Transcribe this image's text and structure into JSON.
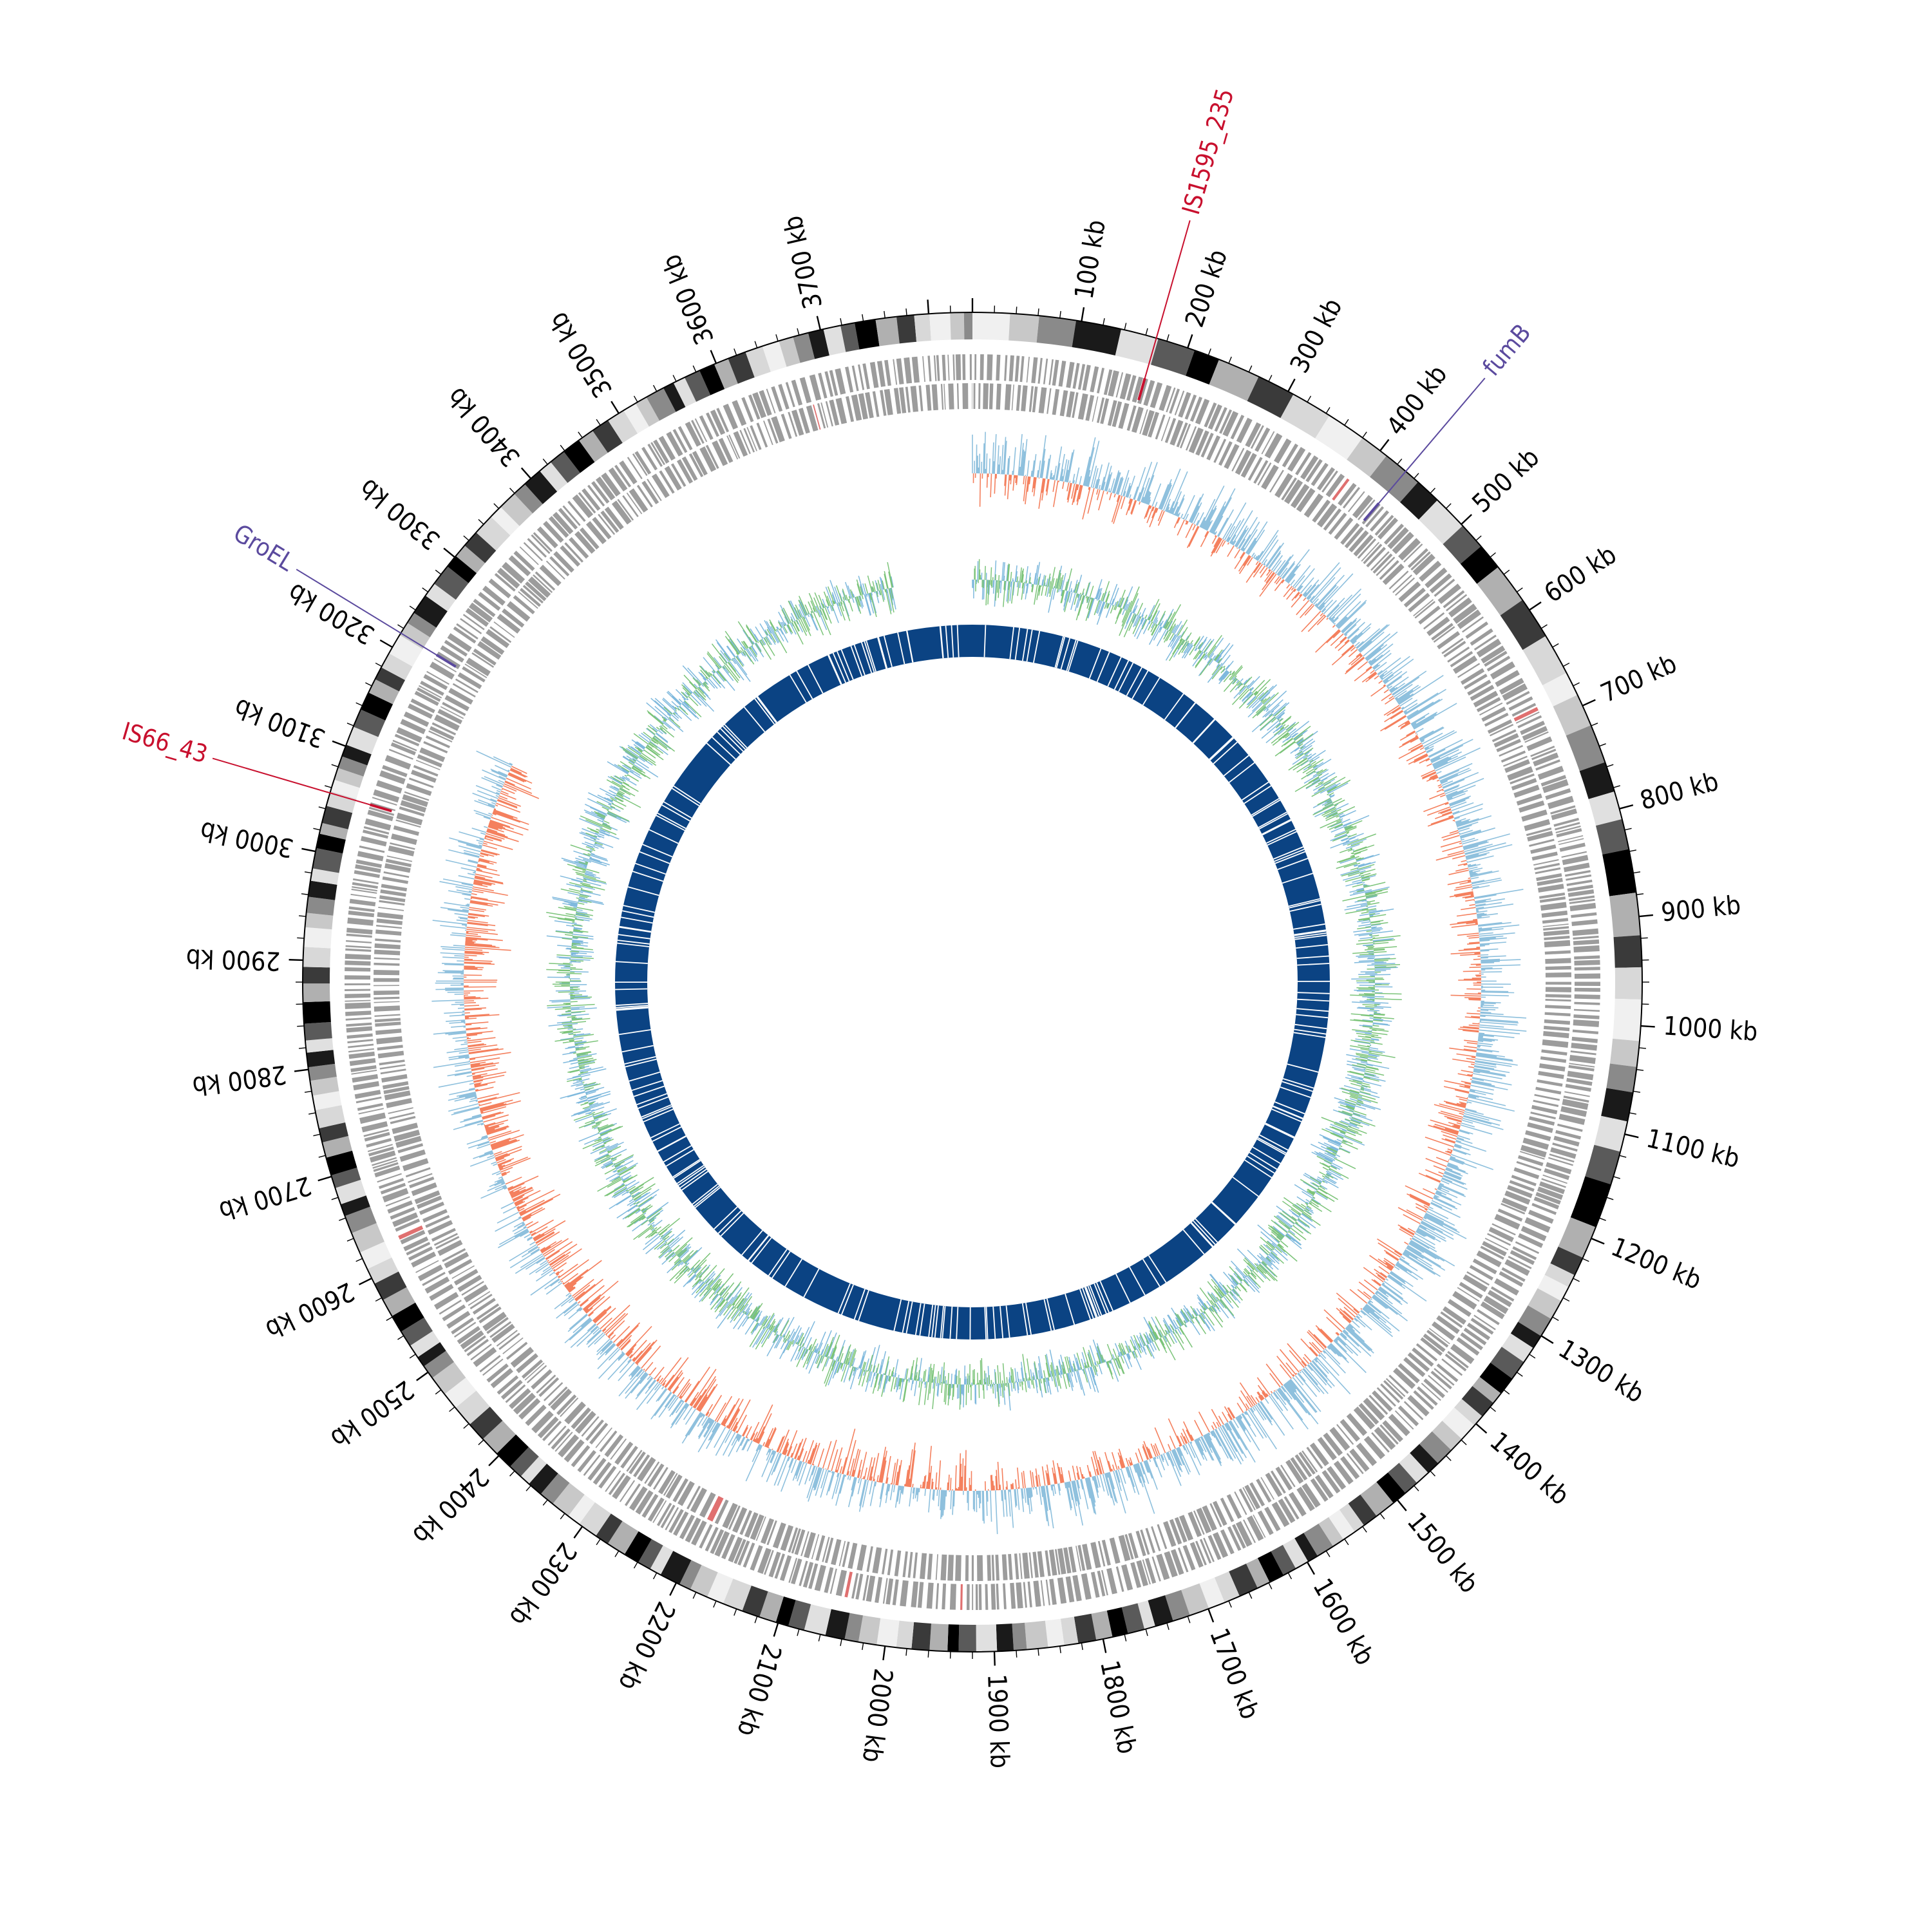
{
  "genome": {
    "total_kb": 3840,
    "tick_labels": [
      "100 kb",
      "200 kb",
      "300 kb",
      "400 kb",
      "500 kb",
      "600 kb",
      "700 kb",
      "800 kb",
      "900 kb",
      "1000 kb",
      "1100 kb",
      "1200 kb",
      "1300 kb",
      "1400 kb",
      "1500 kb",
      "1600 kb",
      "1700 kb",
      "1800 kb",
      "1900 kb",
      "2000 kb",
      "2100 kb",
      "2200 kb",
      "2300 kb",
      "2400 kb",
      "2500 kb",
      "2600 kb",
      "2700 kb",
      "2800 kb",
      "2900 kb",
      "3000 kb",
      "3100 kb",
      "3200 kb",
      "3300 kb",
      "3400 kb",
      "3500 kb",
      "3600 kb",
      "3700 kb"
    ],
    "tick_values_kb": [
      100,
      200,
      300,
      400,
      500,
      600,
      700,
      800,
      900,
      1000,
      1100,
      1200,
      1300,
      1400,
      1500,
      1600,
      1700,
      1800,
      1900,
      2000,
      2100,
      2200,
      2300,
      2400,
      2500,
      2600,
      2700,
      2800,
      2900,
      3000,
      3100,
      3200,
      3300,
      3400,
      3500,
      3600,
      3700
    ]
  },
  "annotations": [
    {
      "label": "IS1595_235",
      "position_kb": 170,
      "color": "#c8102e"
    },
    {
      "label": "fumB",
      "position_kb": 430,
      "color": "#5b4a9e"
    },
    {
      "label": "GroEL",
      "position_kb": 3215,
      "color": "#5b4a9e"
    },
    {
      "label": "IS66_43",
      "position_kb": 3055,
      "color": "#c8102e"
    }
  ],
  "tracks": [
    {
      "name": "karyotype",
      "style": "grayscale-bands"
    },
    {
      "name": "genes",
      "color": "#a0a0a0"
    },
    {
      "name": "gc-skew",
      "positive_color": "#8ec0dd",
      "negative_color": "#f4805e",
      "gap_kb": [
        3150,
        3840
      ]
    },
    {
      "name": "gc-content",
      "colors": [
        "#7fb9dd",
        "#7cc47a"
      ],
      "gap_kb": [
        3720,
        3840
      ]
    },
    {
      "name": "coverage",
      "color": "#0b4383"
    }
  ]
}
